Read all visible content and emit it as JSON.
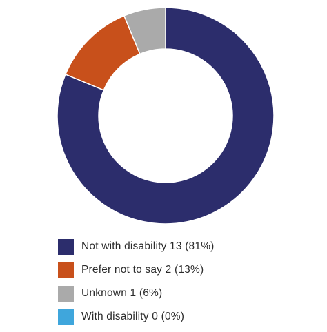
{
  "chart_data": {
    "type": "pie",
    "style": "donut",
    "title": "",
    "slices": [
      {
        "label": "Not with disability",
        "value": 13,
        "percent": 81,
        "legend_text": "Not with disability 13 (81%)",
        "color": "#2c2d6c"
      },
      {
        "label": "Prefer not to say",
        "value": 2,
        "percent": 13,
        "legend_text": "Prefer not to say 2 (13%)",
        "color": "#c8501b"
      },
      {
        "label": "Unknown",
        "value": 1,
        "percent": 6,
        "legend_text": "Unknown 1 (6%)",
        "color": "#aaaaaa"
      },
      {
        "label": "With disability",
        "value": 0,
        "percent": 0,
        "legend_text": "With disability 0 (0%)",
        "color": "#3fa6dc"
      }
    ],
    "start_angle": "top",
    "direction": "clockwise",
    "legend_position": "bottom"
  }
}
